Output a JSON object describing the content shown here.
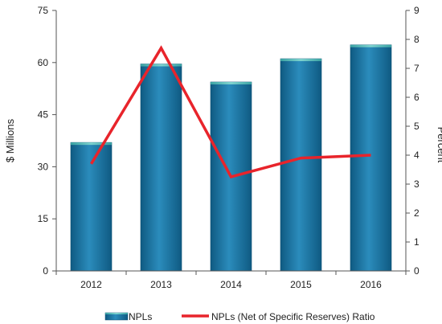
{
  "chart_data": {
    "type": "bar",
    "categories": [
      "2012",
      "2013",
      "2014",
      "2015",
      "2016"
    ],
    "series": [
      {
        "name": "NPLs",
        "type": "bar",
        "axis": "left",
        "color": "#1a6f9c",
        "values": [
          37.0,
          59.6,
          54.4,
          61.1,
          65.1
        ]
      },
      {
        "name": "NPLs (Net of Specific Reserves) Ratio",
        "type": "line",
        "axis": "right",
        "color": "#e8242b",
        "values": [
          3.7,
          7.7,
          3.25,
          3.9,
          4.0
        ]
      }
    ],
    "ylabel": "$ Millions",
    "y2label": "Percent",
    "ylim": [
      0,
      75
    ],
    "y2lim": [
      0,
      9
    ],
    "yticks": [
      "0",
      "15",
      "30",
      "45",
      "60",
      "75"
    ],
    "y2ticks": [
      "0",
      "1",
      "2",
      "3",
      "4",
      "5",
      "6",
      "7",
      "8",
      "9"
    ],
    "grid": false,
    "legend_position": "bottom"
  }
}
